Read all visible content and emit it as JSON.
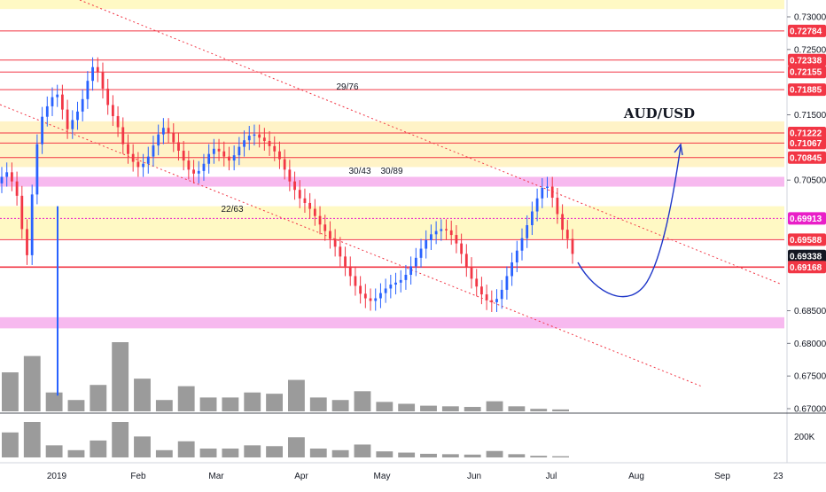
{
  "chart_data": {
    "type": "candlestick",
    "title": "AUD/USD",
    "xlabel": "",
    "ylabel": "",
    "ylim": [
      0.667,
      0.7325
    ],
    "grid": false,
    "legend": "none",
    "y_ticks": [
      "0.73000",
      "0.72500",
      "0.71500",
      "0.70500",
      "0.68500",
      "0.68000",
      "0.67500",
      "0.67000"
    ],
    "x_ticks": [
      "2019",
      "Feb",
      "Mar",
      "Apr",
      "May",
      "Jun",
      "Jul",
      "Aug",
      "Sep",
      "23"
    ],
    "volume_axis_label": "200K",
    "level_labels": [
      {
        "text": "0.72784",
        "value": 0.72784,
        "color": "#f23645"
      },
      {
        "text": "0.72338",
        "value": 0.72338,
        "color": "#f23645"
      },
      {
        "text": "0.72155",
        "value": 0.72155,
        "color": "#f23645"
      },
      {
        "text": "0.71885",
        "value": 0.71885,
        "color": "#f23645"
      },
      {
        "text": "0.71222",
        "value": 0.71222,
        "color": "#f23645"
      },
      {
        "text": "0.71067",
        "value": 0.71067,
        "color": "#f23645"
      },
      {
        "text": "0.70845",
        "value": 0.70845,
        "color": "#f23645"
      },
      {
        "text": "0.69913",
        "value": 0.69913,
        "color": "#e91ec8"
      },
      {
        "text": "0.69588",
        "value": 0.69588,
        "color": "#f23645"
      },
      {
        "text": "0.69338",
        "value": 0.69338,
        "color": "#131722"
      },
      {
        "text": "0.69168",
        "value": 0.69168,
        "color": "#f23645"
      }
    ],
    "zones": [
      {
        "from": 0.7385,
        "to": 0.7312,
        "color": "#fff9c4"
      },
      {
        "from": 0.714,
        "to": 0.707,
        "color": "#fff3c7"
      },
      {
        "from": 0.7055,
        "to": 0.704,
        "color": "#f7b9ef"
      },
      {
        "from": 0.701,
        "to": 0.696,
        "color": "#fff9c4"
      },
      {
        "from": 0.684,
        "to": 0.6823,
        "color": "#f7b9ef"
      }
    ],
    "annotations": [
      "29/76",
      "22/63",
      "30/43",
      "30/89"
    ],
    "price": [
      0.7055,
      0.7062,
      0.7048,
      0.7026,
      0.6975,
      0.6935,
      0.7028,
      0.7105,
      0.7147,
      0.7163,
      0.7177,
      0.7181,
      0.7158,
      0.7128,
      0.7142,
      0.7155,
      0.7174,
      0.7202,
      0.7223,
      0.7215,
      0.719,
      0.7165,
      0.7148,
      0.7131,
      0.7105,
      0.709,
      0.7078,
      0.707,
      0.7075,
      0.7086,
      0.7103,
      0.712,
      0.713,
      0.7122,
      0.7108,
      0.7095,
      0.708,
      0.7066,
      0.706,
      0.7064,
      0.7075,
      0.709,
      0.7098,
      0.7094,
      0.7086,
      0.708,
      0.7088,
      0.7101,
      0.7111,
      0.7118,
      0.712,
      0.7115,
      0.711,
      0.7102,
      0.7094,
      0.7082,
      0.7066,
      0.7048,
      0.7035,
      0.7022,
      0.7015,
      0.7006,
      0.6995,
      0.6982,
      0.6972,
      0.696,
      0.6948,
      0.6933,
      0.6918,
      0.6903,
      0.6888,
      0.6876,
      0.6869,
      0.6865,
      0.6869,
      0.6877,
      0.6884,
      0.689,
      0.6893,
      0.6897,
      0.6905,
      0.6918,
      0.6931,
      0.6945,
      0.6958,
      0.6967,
      0.6972,
      0.6975,
      0.6973,
      0.6966,
      0.6953,
      0.6937,
      0.6917,
      0.6899,
      0.6887,
      0.6875,
      0.6866,
      0.6863,
      0.6868,
      0.6882,
      0.6903,
      0.6924,
      0.6942,
      0.6961,
      0.6981,
      0.7002,
      0.7022,
      0.7038,
      0.704,
      0.7023,
      0.6998,
      0.6974,
      0.696,
      0.6937
    ],
    "volume": [
      62,
      88,
      30,
      18,
      42,
      110,
      52,
      18,
      40,
      22,
      22,
      30,
      28,
      50,
      22,
      18,
      32,
      15,
      12,
      9,
      8,
      7,
      16,
      8,
      4,
      3
    ]
  },
  "ui": {
    "axis_bg": "#ffffff",
    "axis_text_color": "#131722",
    "up_color": "#2962ff",
    "down_color": "#f23645",
    "volume_color": "#8a8a8a",
    "projection_color": "#1e36c8",
    "channel_color": "#f23645"
  }
}
